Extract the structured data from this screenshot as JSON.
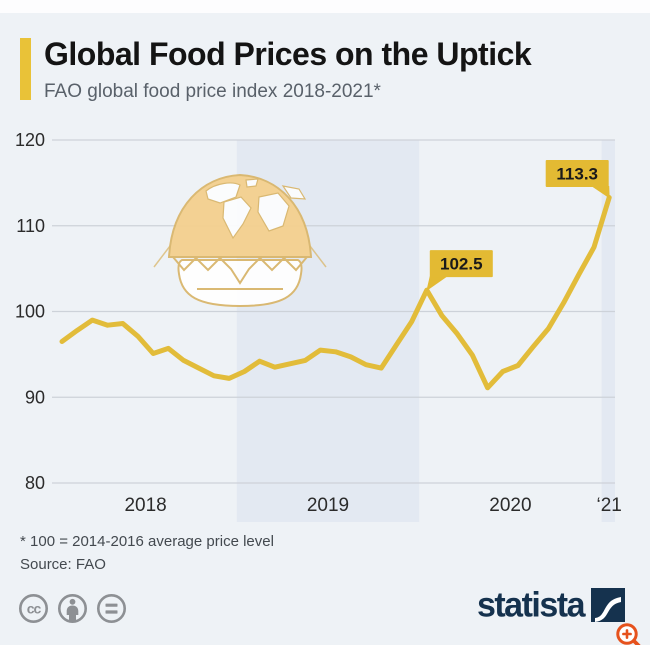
{
  "page": {
    "background": "#eef2f6",
    "top_margin_color": "#fdfdfe",
    "bottom_margin_color": "#ffffff"
  },
  "header": {
    "title": "Global Food Prices on the Uptick",
    "subtitle": "FAO global food price index 2018-2021*",
    "accent_color": "#e9c238"
  },
  "chart_data": {
    "type": "line",
    "title": "FAO global food price index 2018-2021",
    "series_name": "FAO Food Price Index (100 = 2014-2016 average)",
    "categories": [
      "Jan 2018",
      "Feb 2018",
      "Mar 2018",
      "Apr 2018",
      "May 2018",
      "Jun 2018",
      "Jul 2018",
      "Aug 2018",
      "Sep 2018",
      "Oct 2018",
      "Nov 2018",
      "Dec 2018",
      "Jan 2019",
      "Feb 2019",
      "Mar 2019",
      "Apr 2019",
      "May 2019",
      "Jun 2019",
      "Jul 2019",
      "Aug 2019",
      "Sep 2019",
      "Oct 2019",
      "Nov 2019",
      "Dec 2019",
      "Jan 2020",
      "Feb 2020",
      "Mar 2020",
      "Apr 2020",
      "May 2020",
      "Jun 2020",
      "Jul 2020",
      "Aug 2020",
      "Sep 2020",
      "Oct 2020",
      "Nov 2020",
      "Dec 2020",
      "Jan 2021"
    ],
    "values": [
      96.5,
      97.8,
      99.0,
      98.4,
      98.6,
      97.1,
      95.1,
      95.7,
      94.3,
      93.4,
      92.5,
      92.2,
      93.0,
      94.2,
      93.5,
      93.9,
      94.3,
      95.5,
      95.3,
      94.7,
      93.8,
      93.4,
      96.1,
      98.8,
      102.5,
      99.5,
      97.4,
      94.9,
      91.1,
      93.0,
      93.7,
      95.9,
      98.0,
      101.0,
      104.3,
      107.5,
      113.3
    ],
    "ylim": [
      80,
      120
    ],
    "yticks": [
      120,
      110,
      100,
      90,
      80
    ],
    "xticks": [
      {
        "label": "2018",
        "center_index": 5.5
      },
      {
        "label": "2019",
        "center_index": 17.5
      },
      {
        "label": "2020",
        "center_index": 29.5
      },
      {
        "label": "‘21",
        "center_index": 36
      }
    ],
    "shaded_bands": [
      {
        "start_index": 11.5,
        "end_index": 23.5
      },
      {
        "start_index": 35.5,
        "end_index": 37.5
      }
    ],
    "annotations": [
      {
        "label": "102.5",
        "value": 102.5,
        "index": 24,
        "side": "right"
      },
      {
        "label": "113.3",
        "value": 113.3,
        "index": 36,
        "side": "left"
      }
    ],
    "grid": true,
    "legend": "none",
    "line_color": "#e2bc3a",
    "band_color": "#e3e9f2",
    "grid_color": "#cdd2d9",
    "annotation_bg": "#e3ba33",
    "annotation_text_color": "#1a1a1a",
    "axis_text_color": "#2b2b2b"
  },
  "watermark": {
    "icon": "globe-burger-icon",
    "outline_color": "#d9b66c",
    "fill_color": "#f4d08e"
  },
  "footnote": {
    "line1": "* 100 = 2014-2016 average price level",
    "line2": "Source: FAO"
  },
  "footer": {
    "brand_text": "statista",
    "brand_color": "#15324e",
    "license_icon_color": "#8d9094",
    "license_icons": [
      "cc-icon",
      "cc-by-icon",
      "cc-nd-icon"
    ],
    "zoom_icon_color": "#e6521d"
  }
}
